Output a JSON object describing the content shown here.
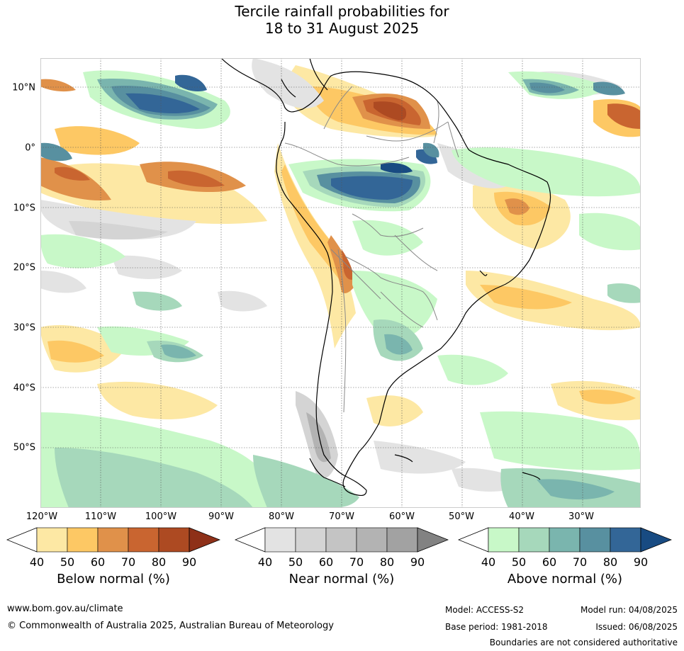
{
  "title": {
    "line1": "Tercile rainfall probabilities for",
    "line2": "18 to 31 August 2025"
  },
  "map": {
    "lon_labels": [
      "120°W",
      "110°W",
      "100°W",
      "90°W",
      "80°W",
      "70°W",
      "60°W",
      "50°W",
      "40°W",
      "30°W"
    ],
    "lat_labels": [
      "10°N",
      "0°",
      "10°S",
      "20°S",
      "30°S",
      "40°S",
      "50°S"
    ],
    "gridlines": true
  },
  "legends": [
    {
      "label": "Below normal (%)",
      "ticks": [
        "40",
        "50",
        "60",
        "70",
        "80",
        "90"
      ],
      "colors": [
        "#fde8a4",
        "#fdc864",
        "#e0914a",
        "#c96530",
        "#ad4a22",
        "#8e3018"
      ]
    },
    {
      "label": "Near normal (%)",
      "ticks": [
        "40",
        "50",
        "60",
        "70",
        "80",
        "90"
      ],
      "colors": [
        "#e3e3e3",
        "#d4d4d4",
        "#c4c4c4",
        "#b3b3b3",
        "#a2a2a2",
        "#828282"
      ]
    },
    {
      "label": "Above normal (%)",
      "ticks": [
        "40",
        "50",
        "60",
        "70",
        "80",
        "90"
      ],
      "colors": [
        "#c8f8c8",
        "#a6d8bb",
        "#7ab5ae",
        "#5890a0",
        "#336697",
        "#184b82"
      ]
    }
  ],
  "footer": {
    "website": "www.bom.gov.au/climate",
    "copyright": "© Commonwealth of Australia 2025, Australian Bureau of Meteorology",
    "model": "Model: ACCESS-S2",
    "model_run": "Model run: 04/08/2025",
    "base_period": "Base period: 1981-2018",
    "issued": "Issued: 06/08/2025",
    "disclaimer": "Boundaries are not considered authoritative"
  }
}
